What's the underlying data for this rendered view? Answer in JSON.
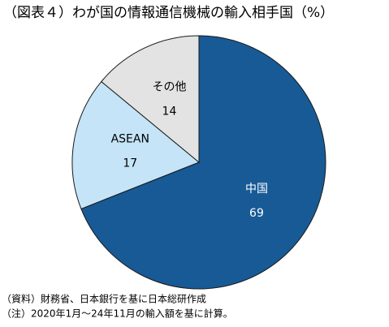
{
  "chart_data": {
    "type": "pie",
    "title": "（図表４）わが国の情報通信機械の輸入相手国（%）",
    "categories": [
      "中国",
      "ASEAN",
      "その他"
    ],
    "values": [
      69,
      17,
      14
    ],
    "colors": [
      "#175a96",
      "#c5e4f8",
      "#e3e3e3"
    ],
    "notes": [
      "（資料）財務省、日本銀行を基に日本総研作成",
      "（注）2020年1月～24年11月の輸入額を基に計算。"
    ]
  }
}
